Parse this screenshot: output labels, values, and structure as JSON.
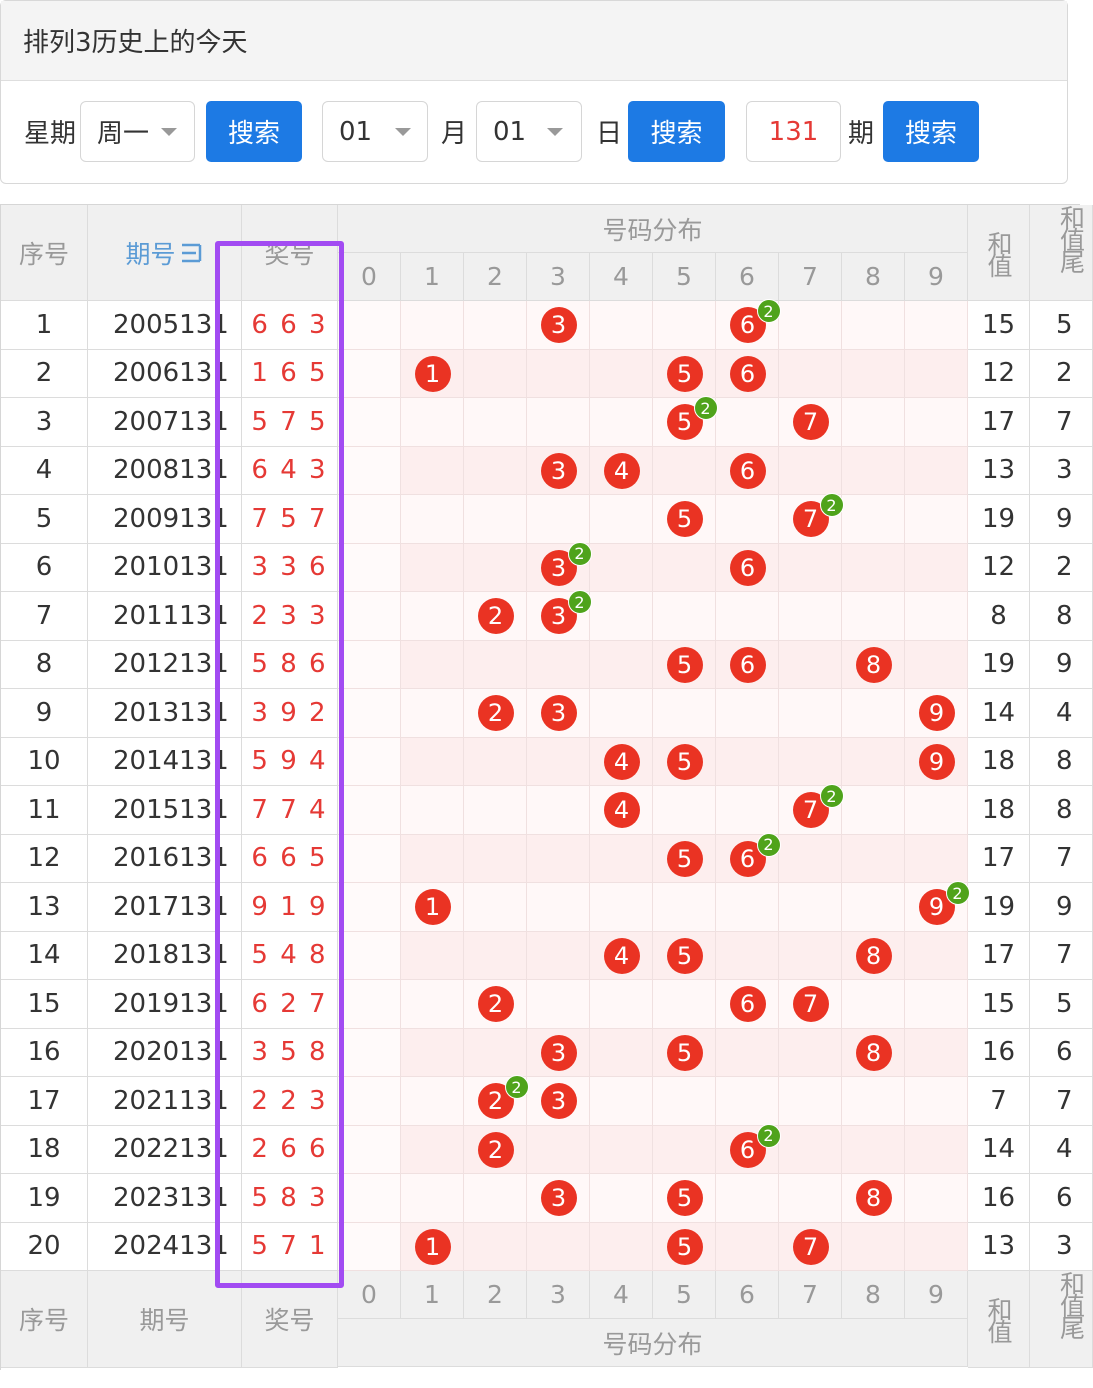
{
  "header": {
    "title": "排列3历史上的今天"
  },
  "filters": {
    "weekday_label": "星期",
    "weekday": "周一",
    "search_weekday": "搜索",
    "month": "01",
    "month_label": "月",
    "day": "01",
    "day_label": "日",
    "search_date": "搜索",
    "issue": "131",
    "issue_label": "期",
    "search_issue": "搜索"
  },
  "table": {
    "columns": {
      "seq": "序号",
      "period": "期号",
      "number": "奖号",
      "distribution": "号码分布",
      "digits": [
        "0",
        "1",
        "2",
        "3",
        "4",
        "5",
        "6",
        "7",
        "8",
        "9"
      ],
      "sum": "和值",
      "tail": "和值尾"
    },
    "rows": [
      {
        "seq": 1,
        "period": "2005131",
        "number": "6 6 3",
        "balls": [
          {
            "digit": "3"
          },
          {
            "digit": "6",
            "repeat": "2"
          }
        ],
        "sum": 15,
        "tail": 5
      },
      {
        "seq": 2,
        "period": "2006131",
        "number": "1 6 5",
        "balls": [
          {
            "digit": "1"
          },
          {
            "digit": "5"
          },
          {
            "digit": "6"
          }
        ],
        "sum": 12,
        "tail": 2
      },
      {
        "seq": 3,
        "period": "2007131",
        "number": "5 7 5",
        "balls": [
          {
            "digit": "5",
            "repeat": "2"
          },
          {
            "digit": "7"
          }
        ],
        "sum": 17,
        "tail": 7
      },
      {
        "seq": 4,
        "period": "2008131",
        "number": "6 4 3",
        "balls": [
          {
            "digit": "3"
          },
          {
            "digit": "4"
          },
          {
            "digit": "6"
          }
        ],
        "sum": 13,
        "tail": 3
      },
      {
        "seq": 5,
        "period": "2009131",
        "number": "7 5 7",
        "balls": [
          {
            "digit": "5"
          },
          {
            "digit": "7",
            "repeat": "2"
          }
        ],
        "sum": 19,
        "tail": 9
      },
      {
        "seq": 6,
        "period": "2010131",
        "number": "3 3 6",
        "balls": [
          {
            "digit": "3",
            "repeat": "2"
          },
          {
            "digit": "6"
          }
        ],
        "sum": 12,
        "tail": 2
      },
      {
        "seq": 7,
        "period": "2011131",
        "number": "2 3 3",
        "balls": [
          {
            "digit": "2"
          },
          {
            "digit": "3",
            "repeat": "2"
          }
        ],
        "sum": 8,
        "tail": 8
      },
      {
        "seq": 8,
        "period": "2012131",
        "number": "5 8 6",
        "balls": [
          {
            "digit": "5"
          },
          {
            "digit": "6"
          },
          {
            "digit": "8"
          }
        ],
        "sum": 19,
        "tail": 9
      },
      {
        "seq": 9,
        "period": "2013131",
        "number": "3 9 2",
        "balls": [
          {
            "digit": "2"
          },
          {
            "digit": "3"
          },
          {
            "digit": "9"
          }
        ],
        "sum": 14,
        "tail": 4
      },
      {
        "seq": 10,
        "period": "2014131",
        "number": "5 9 4",
        "balls": [
          {
            "digit": "4"
          },
          {
            "digit": "5"
          },
          {
            "digit": "9"
          }
        ],
        "sum": 18,
        "tail": 8
      },
      {
        "seq": 11,
        "period": "2015131",
        "number": "7 7 4",
        "balls": [
          {
            "digit": "4"
          },
          {
            "digit": "7",
            "repeat": "2"
          }
        ],
        "sum": 18,
        "tail": 8
      },
      {
        "seq": 12,
        "period": "2016131",
        "number": "6 6 5",
        "balls": [
          {
            "digit": "5"
          },
          {
            "digit": "6",
            "repeat": "2"
          }
        ],
        "sum": 17,
        "tail": 7
      },
      {
        "seq": 13,
        "period": "2017131",
        "number": "9 1 9",
        "balls": [
          {
            "digit": "1"
          },
          {
            "digit": "9",
            "repeat": "2"
          }
        ],
        "sum": 19,
        "tail": 9
      },
      {
        "seq": 14,
        "period": "2018131",
        "number": "5 4 8",
        "balls": [
          {
            "digit": "4"
          },
          {
            "digit": "5"
          },
          {
            "digit": "8"
          }
        ],
        "sum": 17,
        "tail": 7
      },
      {
        "seq": 15,
        "period": "2019131",
        "number": "6 2 7",
        "balls": [
          {
            "digit": "2"
          },
          {
            "digit": "6"
          },
          {
            "digit": "7"
          }
        ],
        "sum": 15,
        "tail": 5
      },
      {
        "seq": 16,
        "period": "2020131",
        "number": "3 5 8",
        "balls": [
          {
            "digit": "3"
          },
          {
            "digit": "5"
          },
          {
            "digit": "8"
          }
        ],
        "sum": 16,
        "tail": 6
      },
      {
        "seq": 17,
        "period": "2021131",
        "number": "2 2 3",
        "balls": [
          {
            "digit": "2",
            "repeat": "2"
          },
          {
            "digit": "3"
          }
        ],
        "sum": 7,
        "tail": 7
      },
      {
        "seq": 18,
        "period": "2022131",
        "number": "2 6 6",
        "balls": [
          {
            "digit": "2"
          },
          {
            "digit": "6",
            "repeat": "2"
          }
        ],
        "sum": 14,
        "tail": 4
      },
      {
        "seq": 19,
        "period": "2023131",
        "number": "5 8 3",
        "balls": [
          {
            "digit": "3"
          },
          {
            "digit": "5"
          },
          {
            "digit": "8"
          }
        ],
        "sum": 16,
        "tail": 6
      },
      {
        "seq": 20,
        "period": "2024131",
        "number": "5 7 1",
        "balls": [
          {
            "digit": "1"
          },
          {
            "digit": "5"
          },
          {
            "digit": "7"
          }
        ],
        "sum": 13,
        "tail": 3
      }
    ]
  }
}
